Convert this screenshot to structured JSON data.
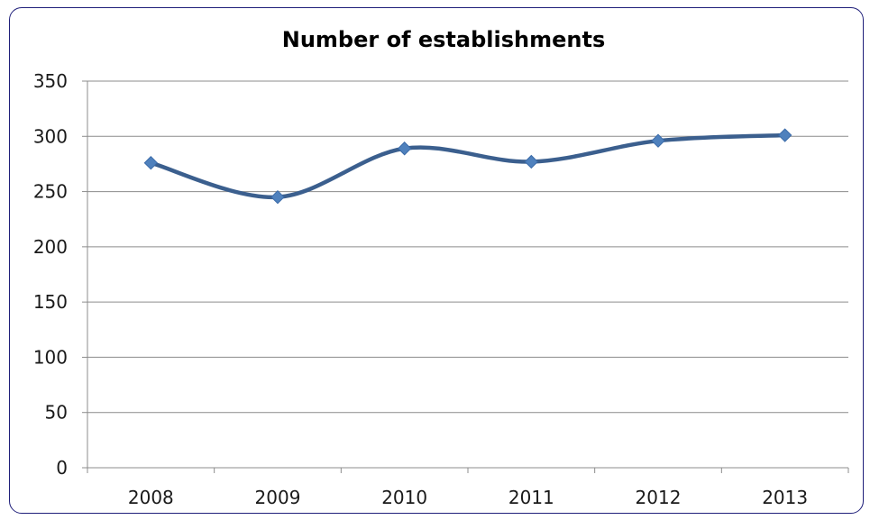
{
  "chart_data": {
    "type": "line",
    "title": "Number of establishments",
    "categories": [
      "2008",
      "2009",
      "2010",
      "2011",
      "2012",
      "2013"
    ],
    "series": [
      {
        "values": [
          276,
          245,
          289,
          277,
          296,
          301
        ]
      }
    ],
    "ylim": [
      0,
      350
    ],
    "yticks": [
      0,
      50,
      100,
      150,
      200,
      250,
      300,
      350
    ],
    "grid": true,
    "legend": "none",
    "colors": {
      "line": "#3b5f8e",
      "marker": "#4f81bd",
      "grid": "#8c8c8c",
      "frame": "#1f1f7a"
    }
  }
}
